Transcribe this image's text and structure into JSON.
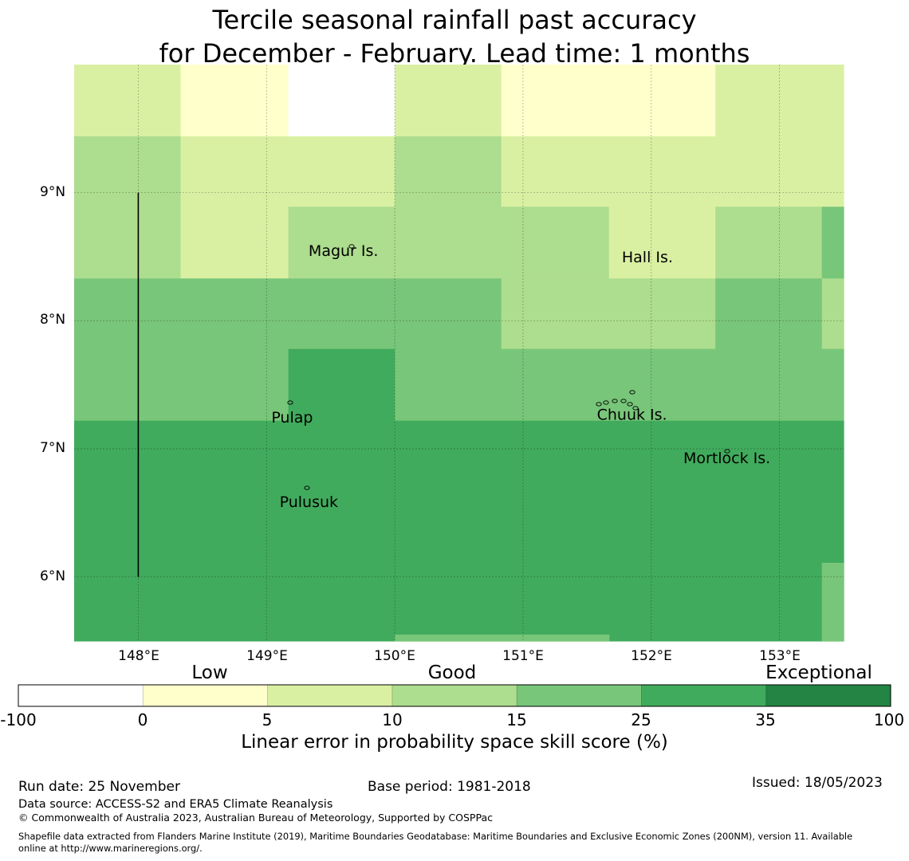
{
  "title": {
    "line1": "Tercile seasonal rainfall past accuracy",
    "line2": "for December - February. Lead time: 1 months"
  },
  "map": {
    "lon_range": [
      147.5,
      153.5
    ],
    "lat_range": [
      5.5,
      10.0
    ],
    "lat_ticks": [
      {
        "value": 9,
        "label": "9°N"
      },
      {
        "value": 8,
        "label": "8°N"
      },
      {
        "value": 7,
        "label": "7°N"
      },
      {
        "value": 6,
        "label": "6°N"
      }
    ],
    "lon_ticks": [
      {
        "value": 148,
        "label": "148°E"
      },
      {
        "value": 149,
        "label": "149°E"
      },
      {
        "value": 150,
        "label": "150°E"
      },
      {
        "value": 151,
        "label": "151°E"
      },
      {
        "value": 152,
        "label": "152°E"
      },
      {
        "value": 153,
        "label": "153°E"
      }
    ],
    "skill_cells": [
      {
        "lon": [
          147.5,
          148.33
        ],
        "lat": [
          9.44,
          10.0
        ],
        "category": "5-10"
      },
      {
        "lon": [
          148.33,
          149.17
        ],
        "lat": [
          9.44,
          10.0
        ],
        "category": "0-5"
      },
      {
        "lon": [
          149.17,
          150.0
        ],
        "lat": [
          9.44,
          10.0
        ],
        "category": "-100-0"
      },
      {
        "lon": [
          150.0,
          150.83
        ],
        "lat": [
          9.44,
          10.0
        ],
        "category": "5-10"
      },
      {
        "lon": [
          150.83,
          152.5
        ],
        "lat": [
          9.44,
          10.0
        ],
        "category": "0-5"
      },
      {
        "lon": [
          152.5,
          153.5
        ],
        "lat": [
          9.44,
          10.0
        ],
        "category": "5-10"
      },
      {
        "lon": [
          147.5,
          148.33
        ],
        "lat": [
          8.33,
          9.44
        ],
        "category": "10-15"
      },
      {
        "lon": [
          148.33,
          149.17
        ],
        "lat": [
          8.33,
          9.44
        ],
        "category": "5-10"
      },
      {
        "lon": [
          149.17,
          150.0
        ],
        "lat": [
          8.89,
          9.44
        ],
        "category": "5-10"
      },
      {
        "lon": [
          149.17,
          150.0
        ],
        "lat": [
          8.33,
          8.89
        ],
        "category": "10-15"
      },
      {
        "lon": [
          150.0,
          150.83
        ],
        "lat": [
          8.33,
          9.44
        ],
        "category": "10-15"
      },
      {
        "lon": [
          150.83,
          151.67
        ],
        "lat": [
          8.89,
          9.44
        ],
        "category": "5-10"
      },
      {
        "lon": [
          150.83,
          151.67
        ],
        "lat": [
          8.33,
          8.89
        ],
        "category": "10-15"
      },
      {
        "lon": [
          151.67,
          152.5
        ],
        "lat": [
          8.33,
          9.44
        ],
        "category": "5-10"
      },
      {
        "lon": [
          152.5,
          153.33
        ],
        "lat": [
          8.89,
          9.44
        ],
        "category": "5-10"
      },
      {
        "lon": [
          152.5,
          153.33
        ],
        "lat": [
          8.33,
          8.89
        ],
        "category": "10-15"
      },
      {
        "lon": [
          153.33,
          153.5
        ],
        "lat": [
          8.89,
          9.44
        ],
        "category": "5-10"
      },
      {
        "lon": [
          153.33,
          153.5
        ],
        "lat": [
          8.33,
          8.89
        ],
        "category": "15-25"
      },
      {
        "lon": [
          147.5,
          149.17
        ],
        "lat": [
          7.22,
          8.33
        ],
        "category": "15-25"
      },
      {
        "lon": [
          149.17,
          150.0
        ],
        "lat": [
          7.78,
          8.33
        ],
        "category": "15-25"
      },
      {
        "lon": [
          149.17,
          150.0
        ],
        "lat": [
          7.22,
          7.78
        ],
        "category": "25-35"
      },
      {
        "lon": [
          150.0,
          150.83
        ],
        "lat": [
          7.22,
          8.33
        ],
        "category": "15-25"
      },
      {
        "lon": [
          150.83,
          152.5
        ],
        "lat": [
          7.78,
          8.33
        ],
        "category": "10-15"
      },
      {
        "lon": [
          150.83,
          152.5
        ],
        "lat": [
          7.22,
          7.78
        ],
        "category": "15-25"
      },
      {
        "lon": [
          152.5,
          153.33
        ],
        "lat": [
          7.22,
          8.33
        ],
        "category": "15-25"
      },
      {
        "lon": [
          153.33,
          153.5
        ],
        "lat": [
          7.78,
          8.33
        ],
        "category": "10-15"
      },
      {
        "lon": [
          153.33,
          153.5
        ],
        "lat": [
          7.22,
          7.78
        ],
        "category": "15-25"
      },
      {
        "lon": [
          147.5,
          153.5
        ],
        "lat": [
          5.5,
          7.22
        ],
        "category": "25-35"
      },
      {
        "lon": [
          150.0,
          151.67
        ],
        "lat": [
          5.5,
          5.55
        ],
        "category": "15-25"
      },
      {
        "lon": [
          153.33,
          153.5
        ],
        "lat": [
          5.5,
          6.11
        ],
        "category": "15-25"
      }
    ],
    "boundary_line": {
      "lon": 148.0,
      "lat": [
        6.0,
        9.0
      ]
    },
    "islands": [
      {
        "name": "Magur Is.",
        "lon": 149.6,
        "lat": 8.55
      },
      {
        "name": "Hall Is.",
        "lon": 151.97,
        "lat": 8.5
      },
      {
        "name": "Pulap",
        "lon": 149.2,
        "lat": 7.25
      },
      {
        "name": "Chuuk Is.",
        "lon": 151.85,
        "lat": 7.27
      },
      {
        "name": "Mortlock Is.",
        "lon": 152.59,
        "lat": 6.93
      },
      {
        "name": "Pulusuk",
        "lon": 149.33,
        "lat": 6.59
      }
    ]
  },
  "colorbar": {
    "categories": [
      {
        "label": "Low",
        "at": 0.22
      },
      {
        "label": "Good",
        "at": 0.5
      },
      {
        "label": "Exceptional",
        "at": 0.92
      }
    ],
    "bins": [
      {
        "range": "-100-0",
        "color": "#ffffff"
      },
      {
        "range": "0-5",
        "color": "#ffffcc"
      },
      {
        "range": "5-10",
        "color": "#d9f0a3"
      },
      {
        "range": "10-15",
        "color": "#addd8e"
      },
      {
        "range": "15-25",
        "color": "#78c679"
      },
      {
        "range": "25-35",
        "color": "#41ab5d"
      },
      {
        "range": "35-100",
        "color": "#238443"
      }
    ],
    "tick_labels": [
      "-100",
      "0",
      "5",
      "10",
      "15",
      "25",
      "35",
      "100"
    ],
    "label": "Linear error in probability space skill score (%)"
  },
  "footer": {
    "run_date": "Run date: 25 November",
    "base_period": "Base period: 1981-2018",
    "issued": "Issued: 18/05/2023",
    "data_source": "Data source: ACCESS-S2 and ERA5 Climate Reanalysis",
    "copyright": "© Commonwealth of Australia 2023, Australian Bureau of Meteorology, Supported by COSPPac",
    "shapefile_line1": "Shapefile data extracted from Flanders Marine Institute (2019), Maritime Boundaries Geodatabase: Maritime Boundaries and Exclusive Economic Zones (200NM), version 11. Available",
    "shapefile_line2": "online at http://www.marineregions.org/."
  }
}
